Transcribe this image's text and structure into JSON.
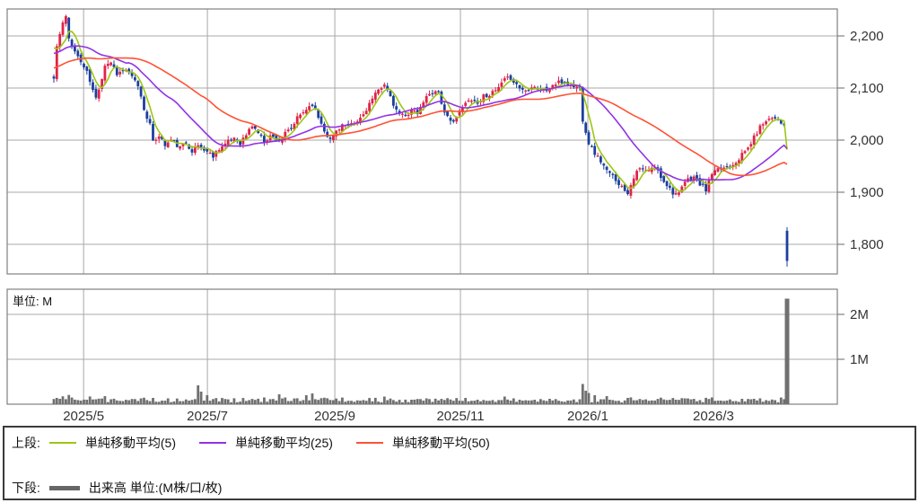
{
  "page": {
    "background": "#ffffff"
  },
  "chart_data": {
    "type": "candlestick",
    "title": "",
    "description": "Daily candlestick stock chart with SMA(5), SMA(25), SMA(50) overlays and volume sub-panel",
    "price_axis": {
      "side": "right",
      "tick_values": [
        2200,
        2100,
        2000,
        1900,
        1800
      ],
      "tick_labels": [
        "2,200",
        "2,100",
        "2,000",
        "1,900",
        "1,800"
      ],
      "visible_range_approx": [
        1743,
        2252
      ]
    },
    "x_axis": {
      "tick_labels": [
        "2025/5",
        "2025/7",
        "2025/9",
        "2025/11",
        "2026/1",
        "2026/3"
      ],
      "tick_days": [
        9.9,
        51.1,
        93.5,
        135.3,
        177.7,
        219.5
      ],
      "total_days": 245
    },
    "volume_axis": {
      "side": "right",
      "tick_values": [
        1,
        2
      ],
      "tick_labels": [
        "1M",
        "2M"
      ],
      "unit_label": "単位: M"
    },
    "series": {
      "close_path_anchors": [
        [
          0,
          2118
        ],
        [
          1,
          2180
        ],
        [
          3,
          2225
        ],
        [
          4,
          2235
        ],
        [
          5,
          2195
        ],
        [
          7,
          2170
        ],
        [
          9,
          2150
        ],
        [
          11,
          2130
        ],
        [
          13,
          2095
        ],
        [
          14,
          2080
        ],
        [
          16,
          2120
        ],
        [
          17,
          2145
        ],
        [
          19,
          2150
        ],
        [
          21,
          2128
        ],
        [
          24,
          2135
        ],
        [
          26,
          2120
        ],
        [
          28,
          2105
        ],
        [
          30,
          2060
        ],
        [
          32,
          2030
        ],
        [
          33,
          1995
        ],
        [
          35,
          2010
        ],
        [
          37,
          1990
        ],
        [
          39,
          2000
        ],
        [
          42,
          1985
        ],
        [
          44,
          1995
        ],
        [
          46,
          1980
        ],
        [
          48,
          1990
        ],
        [
          51,
          1978
        ],
        [
          53,
          1970
        ],
        [
          55,
          1985
        ],
        [
          57,
          1992
        ],
        [
          60,
          2005
        ],
        [
          62,
          1995
        ],
        [
          64,
          2010
        ],
        [
          66,
          2028
        ],
        [
          68,
          2015
        ],
        [
          70,
          1998
        ],
        [
          72,
          2008
        ],
        [
          75,
          2000
        ],
        [
          77,
          2012
        ],
        [
          79,
          2022
        ],
        [
          81,
          2042
        ],
        [
          84,
          2060
        ],
        [
          86,
          2070
        ],
        [
          88,
          2045
        ],
        [
          90,
          2020
        ],
        [
          92,
          2000
        ],
        [
          94,
          2018
        ],
        [
          96,
          2030
        ],
        [
          98,
          2025
        ],
        [
          101,
          2035
        ],
        [
          103,
          2050
        ],
        [
          105,
          2070
        ],
        [
          108,
          2095
        ],
        [
          110,
          2110
        ],
        [
          112,
          2080
        ],
        [
          114,
          2055
        ],
        [
          117,
          2045
        ],
        [
          119,
          2060
        ],
        [
          121,
          2050
        ],
        [
          123,
          2075
        ],
        [
          125,
          2090
        ],
        [
          128,
          2095
        ],
        [
          130,
          2050
        ],
        [
          132,
          2035
        ],
        [
          134,
          2045
        ],
        [
          137,
          2070
        ],
        [
          139,
          2080
        ],
        [
          141,
          2070
        ],
        [
          143,
          2085
        ],
        [
          146,
          2090
        ],
        [
          148,
          2100
        ],
        [
          150,
          2115
        ],
        [
          152,
          2120
        ],
        [
          155,
          2100
        ],
        [
          157,
          2095
        ],
        [
          159,
          2105
        ],
        [
          161,
          2100
        ],
        [
          164,
          2095
        ],
        [
          166,
          2105
        ],
        [
          168,
          2110
        ],
        [
          170,
          2112
        ],
        [
          172,
          2105
        ],
        [
          175,
          2100
        ],
        [
          176,
          2040
        ],
        [
          178,
          1995
        ],
        [
          180,
          1975
        ],
        [
          182,
          1960
        ],
        [
          184,
          1940
        ],
        [
          187,
          1925
        ],
        [
          189,
          1910
        ],
        [
          191,
          1900
        ],
        [
          193,
          1930
        ],
        [
          195,
          1945
        ],
        [
          198,
          1940
        ],
        [
          200,
          1950
        ],
        [
          202,
          1930
        ],
        [
          204,
          1915
        ],
        [
          206,
          1900
        ],
        [
          208,
          1895
        ],
        [
          210,
          1920
        ],
        [
          213,
          1930
        ],
        [
          215,
          1915
        ],
        [
          217,
          1905
        ],
        [
          219,
          1935
        ],
        [
          222,
          1945
        ],
        [
          224,
          1950
        ],
        [
          226,
          1955
        ],
        [
          228,
          1965
        ],
        [
          231,
          1985
        ],
        [
          233,
          2005
        ],
        [
          235,
          2025
        ],
        [
          237,
          2040
        ],
        [
          240,
          2045
        ],
        [
          242,
          2035
        ],
        [
          243,
          2025
        ],
        [
          244,
          1765
        ]
      ],
      "last_candle": {
        "open": 1826,
        "high": 1833,
        "low": 1757,
        "close": 1768
      },
      "sma_periods": [
        5,
        25,
        50
      ],
      "pre_history": {
        "start": 2080,
        "end": 2195,
        "days": 50
      },
      "volume_base": 0.035,
      "volume_spikes": {
        "1": 0.14,
        "2": 0.12,
        "17": 0.18,
        "48": 0.42,
        "49": 0.28,
        "51": 0.2,
        "75": 0.22,
        "84": 0.2,
        "86": 0.24,
        "110": 0.17,
        "137": 0.14,
        "150": 0.17,
        "176": 0.45,
        "177": 0.3,
        "178": 0.25,
        "180": 0.2,
        "184": 0.18,
        "191": 0.14,
        "219": 0.15,
        "233": 0.12,
        "242": 0.15,
        "244": 2.35
      },
      "seed": 11
    },
    "colors": {
      "candle_up": "#e02348",
      "candle_down": "#1c3f9e",
      "sma5": "#9dc613",
      "sma25": "#9232e6",
      "sma50": "#ff5233",
      "volume_bar": "#707070",
      "grid": "#a8a8a8",
      "panel_border": "#808080",
      "axis_text": "#333333"
    },
    "layout_hint": {
      "grid": true,
      "legend_position": "bottom"
    }
  },
  "legend": {
    "upper_label": "上段:",
    "items": [
      {
        "label": "単純移動平均(5)",
        "color": "#9dc613"
      },
      {
        "label": "単純移動平均(25)",
        "color": "#9232e6"
      },
      {
        "label": "単純移動平均(50)",
        "color": "#ff5233"
      }
    ],
    "lower_label": "下段:",
    "volume_item": {
      "label": "出来高 単位:(M株/口/枚)",
      "color": "#666666"
    }
  }
}
